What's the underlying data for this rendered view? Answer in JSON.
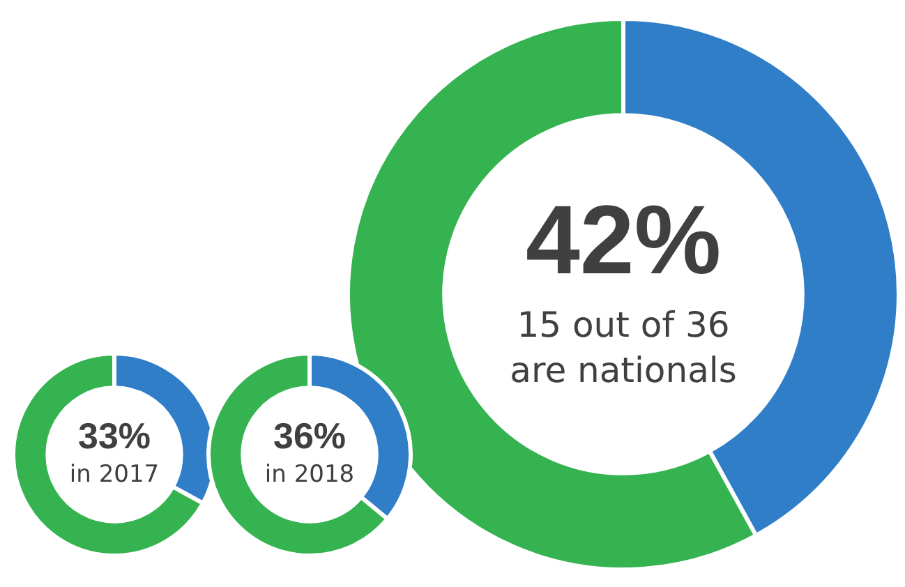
{
  "chart_data": [
    {
      "type": "donut",
      "categories": [
        null,
        null
      ],
      "values": [
        42,
        58
      ],
      "colors": [
        "#2f7ec7",
        "#34b350"
      ],
      "annotations": [
        "42%",
        "15 out of 36 are nationals"
      ]
    },
    {
      "type": "donut",
      "categories": [
        null,
        null
      ],
      "values": [
        33,
        67
      ],
      "colors": [
        "#2f7ec7",
        "#34b350"
      ],
      "annotations": [
        "33%",
        "in 2017"
      ]
    },
    {
      "type": "donut",
      "categories": [
        null,
        null
      ],
      "values": [
        36,
        64
      ],
      "colors": [
        "#2f7ec7",
        "#34b350"
      ],
      "annotations": [
        "36%",
        "in 2018"
      ]
    }
  ]
}
